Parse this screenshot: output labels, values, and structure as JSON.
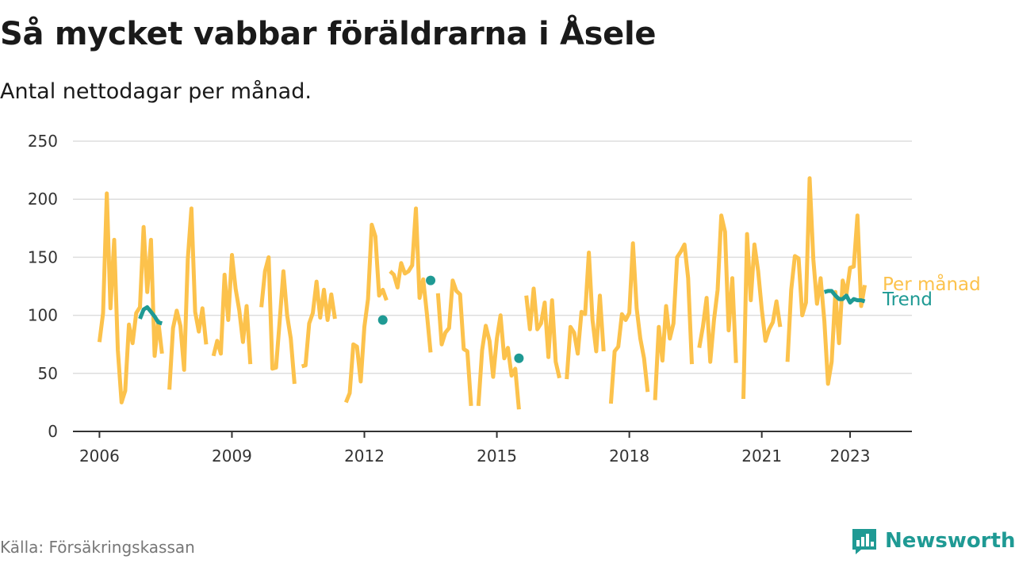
{
  "header": {
    "title": "Så mycket vabbar föräldrarna i Åsele",
    "subtitle": "Antal nettodagar per månad."
  },
  "footer": {
    "source": "Källa: Försäkringskassan",
    "brand": "Newsworthy",
    "brand_icon": "newsworthy-logo-icon"
  },
  "chart_data": {
    "type": "line",
    "title": "Så mycket vabbar föräldrarna i Åsele",
    "subtitle": "Antal nettodagar per månad.",
    "ylim": [
      0,
      250
    ],
    "yticks": [
      0,
      50,
      100,
      150,
      200,
      250
    ],
    "xlim": [
      2005.4,
      2024.4
    ],
    "xticks": [
      {
        "value": 2006,
        "label": "2006"
      },
      {
        "value": 2009,
        "label": "2009"
      },
      {
        "value": 2012,
        "label": "2012"
      },
      {
        "value": 2015,
        "label": "2015"
      },
      {
        "value": 2018,
        "label": "2018"
      },
      {
        "value": 2021,
        "label": "2021"
      },
      {
        "value": 2023,
        "label": "2023"
      }
    ],
    "grid": true,
    "legend": "direct labels at right end of lines",
    "series": [
      {
        "name": "Per månad",
        "color": "#fcc24c",
        "points": [
          [
            2006.0,
            77
          ],
          [
            2006.083,
            102
          ],
          [
            2006.167,
            205
          ],
          [
            2006.25,
            106
          ],
          [
            2006.333,
            165
          ],
          [
            2006.417,
            70
          ],
          [
            2006.5,
            25
          ],
          [
            2006.583,
            35
          ],
          [
            2006.667,
            92
          ],
          [
            2006.75,
            76
          ],
          [
            2006.833,
            102
          ],
          [
            2006.917,
            107
          ],
          [
            2007.0,
            176
          ],
          [
            2007.083,
            120
          ],
          [
            2007.167,
            165
          ],
          [
            2007.25,
            65
          ],
          [
            2007.333,
            95
          ],
          [
            2007.417,
            67
          ],
          null,
          [
            2007.583,
            36
          ],
          [
            2007.667,
            89
          ],
          [
            2007.75,
            104
          ],
          [
            2007.833,
            91
          ],
          [
            2007.917,
            53
          ],
          [
            2008.0,
            148
          ],
          [
            2008.083,
            192
          ],
          [
            2008.167,
            103
          ],
          [
            2008.25,
            86
          ],
          [
            2008.333,
            106
          ],
          [
            2008.417,
            75
          ],
          null,
          [
            2008.583,
            65
          ],
          [
            2008.667,
            78
          ],
          [
            2008.75,
            67
          ],
          [
            2008.833,
            135
          ],
          [
            2008.917,
            96
          ],
          [
            2009.0,
            152
          ],
          [
            2009.083,
            123
          ],
          [
            2009.167,
            104
          ],
          [
            2009.25,
            77
          ],
          [
            2009.333,
            108
          ],
          [
            2009.417,
            58
          ],
          null,
          null,
          [
            2009.667,
            107
          ],
          [
            2009.75,
            138
          ],
          [
            2009.833,
            150
          ],
          [
            2009.917,
            54
          ],
          [
            2010.0,
            55
          ],
          [
            2010.083,
            96
          ],
          [
            2010.167,
            138
          ],
          [
            2010.25,
            100
          ],
          [
            2010.333,
            80
          ],
          [
            2010.417,
            41
          ],
          null,
          [
            2010.583,
            56
          ],
          [
            2010.667,
            57
          ],
          [
            2010.75,
            93
          ],
          [
            2010.833,
            102
          ],
          [
            2010.917,
            129
          ],
          [
            2011.0,
            98
          ],
          [
            2011.083,
            122
          ],
          [
            2011.167,
            96
          ],
          [
            2011.25,
            118
          ],
          [
            2011.333,
            97
          ],
          null,
          null,
          [
            2011.583,
            25
          ],
          [
            2011.667,
            33
          ],
          [
            2011.75,
            75
          ],
          [
            2011.833,
            73
          ],
          [
            2011.917,
            43
          ],
          [
            2012.0,
            90
          ],
          [
            2012.083,
            114
          ],
          [
            2012.167,
            178
          ],
          [
            2012.25,
            168
          ],
          [
            2012.333,
            117
          ],
          [
            2012.417,
            122
          ],
          [
            2012.5,
            113
          ],
          null,
          [
            2012.583,
            138
          ],
          [
            2012.667,
            135
          ],
          [
            2012.75,
            124
          ],
          [
            2012.833,
            145
          ],
          [
            2012.917,
            136
          ],
          [
            2013.0,
            138
          ],
          [
            2013.083,
            143
          ],
          [
            2013.167,
            192
          ],
          [
            2013.25,
            115
          ],
          [
            2013.333,
            131
          ],
          [
            2013.417,
            101
          ],
          [
            2013.5,
            68
          ],
          null,
          [
            2013.667,
            119
          ],
          [
            2013.75,
            75
          ],
          [
            2013.833,
            85
          ],
          [
            2013.917,
            89
          ],
          [
            2014.0,
            130
          ],
          [
            2014.083,
            121
          ],
          [
            2014.167,
            118
          ],
          [
            2014.25,
            71
          ],
          [
            2014.333,
            69
          ],
          [
            2014.417,
            22
          ],
          null,
          [
            2014.583,
            22
          ],
          [
            2014.667,
            70
          ],
          [
            2014.75,
            91
          ],
          [
            2014.833,
            78
          ],
          [
            2014.917,
            47
          ],
          [
            2015.0,
            80
          ],
          [
            2015.083,
            100
          ],
          [
            2015.167,
            63
          ],
          [
            2015.25,
            72
          ],
          [
            2015.333,
            48
          ],
          [
            2015.417,
            54
          ],
          [
            2015.5,
            19
          ],
          null,
          [
            2015.667,
            117
          ],
          [
            2015.75,
            88
          ],
          [
            2015.833,
            123
          ],
          [
            2015.917,
            88
          ],
          [
            2016.0,
            93
          ],
          [
            2016.083,
            111
          ],
          [
            2016.167,
            64
          ],
          [
            2016.25,
            113
          ],
          [
            2016.333,
            60
          ],
          [
            2016.417,
            46
          ],
          null,
          [
            2016.583,
            45
          ],
          [
            2016.667,
            90
          ],
          [
            2016.75,
            85
          ],
          [
            2016.833,
            67
          ],
          [
            2016.917,
            103
          ],
          [
            2017.0,
            101
          ],
          [
            2017.083,
            154
          ],
          [
            2017.167,
            96
          ],
          [
            2017.25,
            69
          ],
          [
            2017.333,
            117
          ],
          [
            2017.417,
            69
          ],
          null,
          [
            2017.583,
            24
          ],
          [
            2017.667,
            69
          ],
          [
            2017.75,
            73
          ],
          [
            2017.833,
            101
          ],
          [
            2017.917,
            96
          ],
          [
            2018.0,
            102
          ],
          [
            2018.083,
            162
          ],
          [
            2018.167,
            106
          ],
          [
            2018.25,
            80
          ],
          [
            2018.333,
            63
          ],
          [
            2018.417,
            34
          ],
          null,
          [
            2018.583,
            27
          ],
          [
            2018.667,
            90
          ],
          [
            2018.75,
            61
          ],
          [
            2018.833,
            108
          ],
          [
            2018.917,
            80
          ],
          [
            2019.0,
            93
          ],
          [
            2019.083,
            150
          ],
          [
            2019.167,
            155
          ],
          [
            2019.25,
            161
          ],
          [
            2019.333,
            132
          ],
          [
            2019.417,
            58
          ],
          null,
          [
            2019.583,
            72
          ],
          [
            2019.667,
            90
          ],
          [
            2019.75,
            115
          ],
          [
            2019.833,
            60
          ],
          [
            2019.917,
            96
          ],
          [
            2020.0,
            122
          ],
          [
            2020.083,
            186
          ],
          [
            2020.167,
            172
          ],
          [
            2020.25,
            87
          ],
          [
            2020.333,
            132
          ],
          [
            2020.417,
            59
          ],
          null,
          [
            2020.583,
            28
          ],
          [
            2020.667,
            170
          ],
          [
            2020.75,
            113
          ],
          [
            2020.833,
            161
          ],
          [
            2020.917,
            138
          ],
          [
            2021.0,
            105
          ],
          [
            2021.083,
            78
          ],
          [
            2021.167,
            88
          ],
          [
            2021.25,
            94
          ],
          [
            2021.333,
            112
          ],
          [
            2021.417,
            90
          ],
          null,
          [
            2021.583,
            60
          ],
          [
            2021.667,
            122
          ],
          [
            2021.75,
            151
          ],
          [
            2021.833,
            149
          ],
          [
            2021.917,
            100
          ],
          [
            2022.0,
            111
          ],
          [
            2022.083,
            218
          ],
          [
            2022.167,
            148
          ],
          [
            2022.25,
            110
          ],
          [
            2022.333,
            132
          ],
          [
            2022.417,
            95
          ],
          [
            2022.5,
            41
          ],
          [
            2022.583,
            60
          ],
          [
            2022.667,
            120
          ],
          [
            2022.75,
            76
          ],
          [
            2022.833,
            130
          ],
          [
            2022.917,
            118
          ],
          [
            2023.0,
            141
          ],
          [
            2023.083,
            142
          ],
          [
            2023.167,
            186
          ],
          [
            2023.25,
            108
          ],
          [
            2023.333,
            126
          ]
        ]
      },
      {
        "name": "Trend",
        "color": "#1f9a94",
        "points": [
          [
            2006.917,
            97
          ],
          [
            2007.0,
            105
          ],
          [
            2007.083,
            107
          ],
          [
            2007.167,
            103
          ],
          [
            2007.25,
            99
          ],
          [
            2007.333,
            94
          ],
          [
            2007.417,
            93
          ],
          null,
          [
            2012.417,
            96
          ],
          null,
          [
            2013.5,
            130
          ],
          null,
          [
            2015.5,
            63
          ],
          null,
          [
            2022.417,
            120
          ],
          [
            2022.5,
            121
          ],
          [
            2022.583,
            121
          ],
          [
            2022.667,
            117
          ],
          [
            2022.75,
            114
          ],
          [
            2022.833,
            114
          ],
          [
            2022.917,
            117
          ],
          [
            2023.0,
            111
          ],
          [
            2023.083,
            114
          ],
          [
            2023.167,
            113
          ],
          [
            2023.25,
            113
          ],
          [
            2023.333,
            112
          ]
        ]
      }
    ]
  }
}
